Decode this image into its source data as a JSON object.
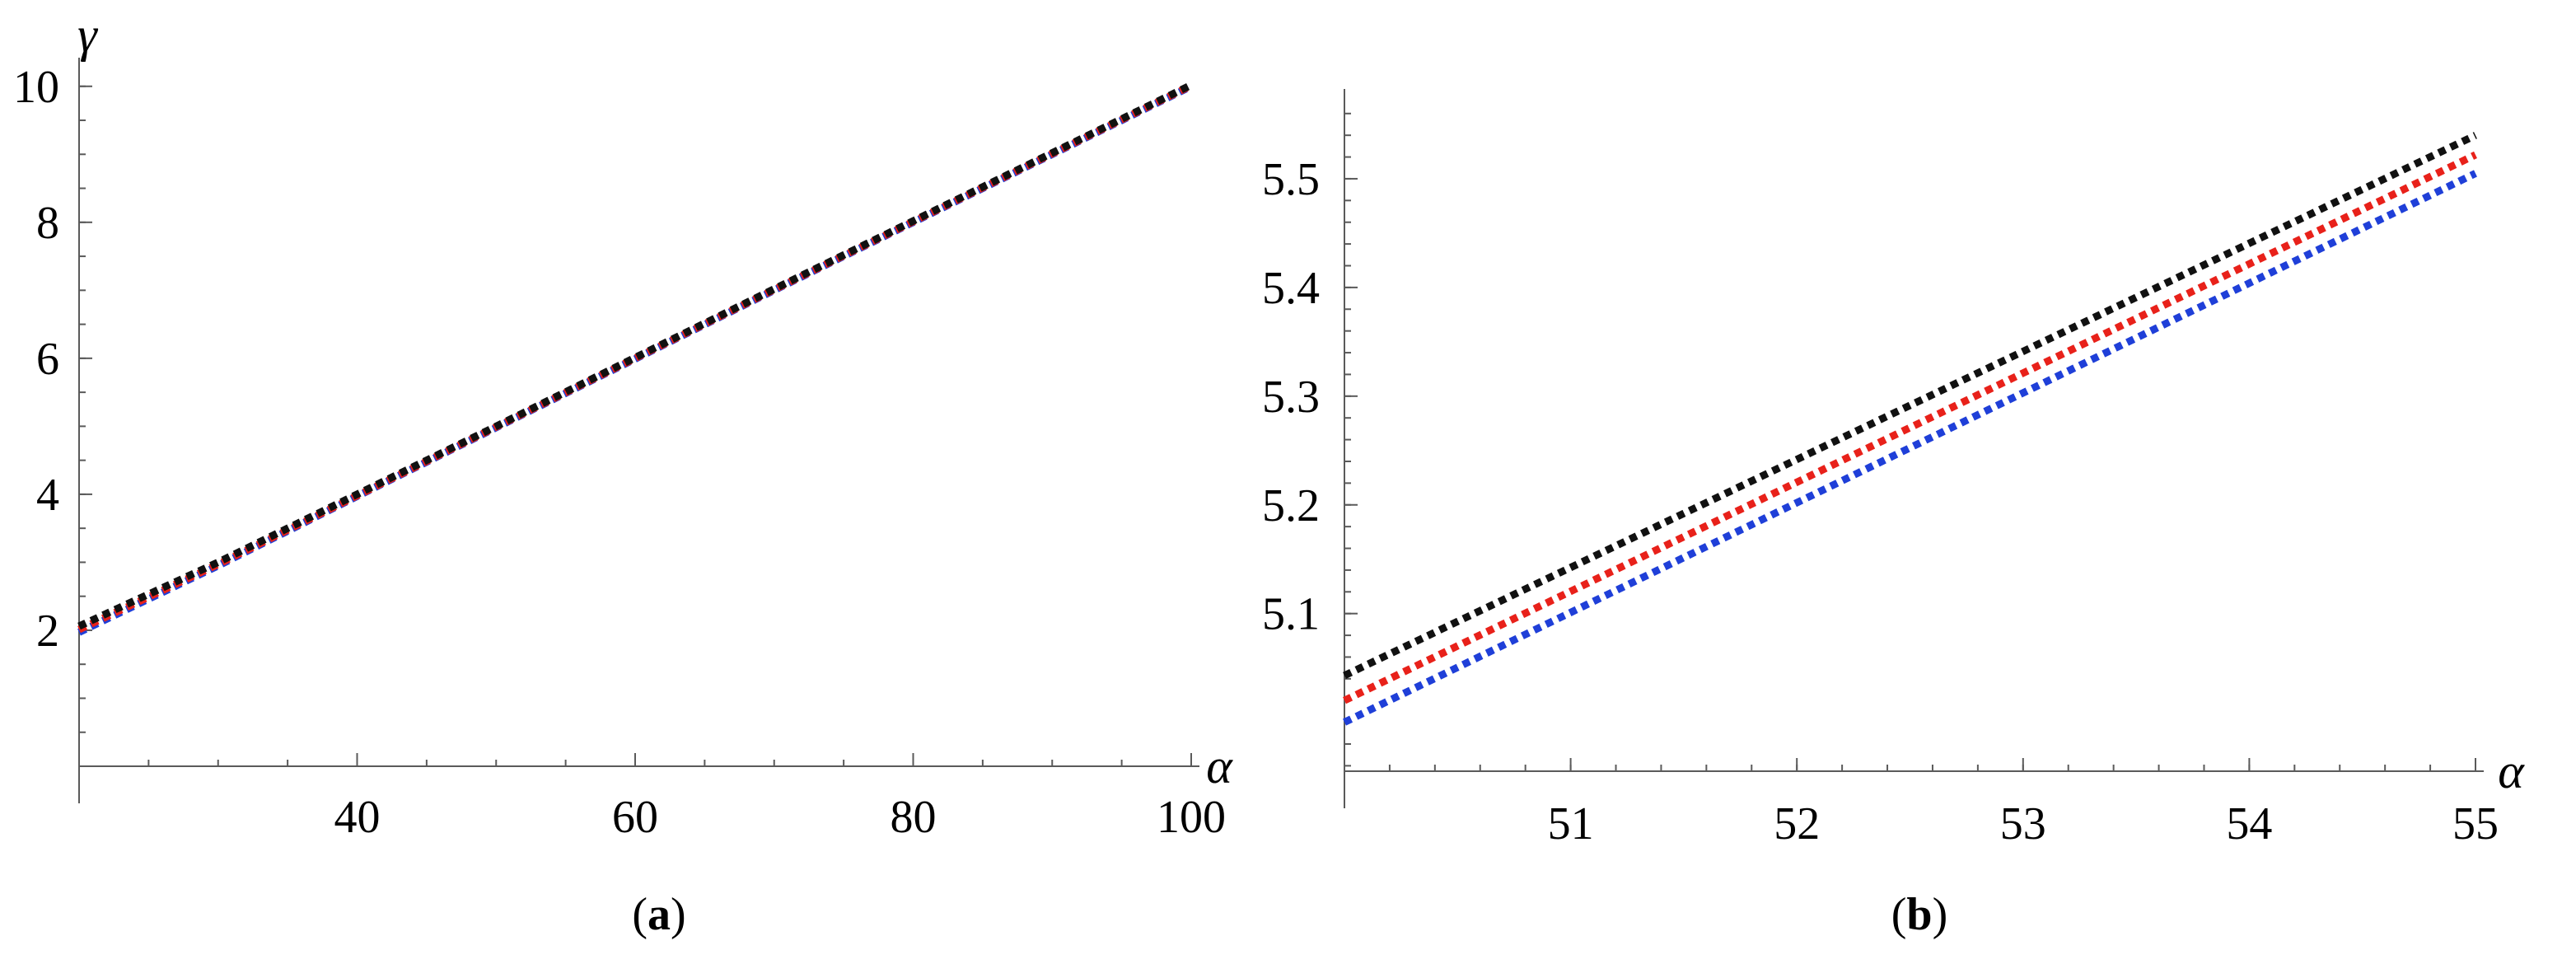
{
  "chart_data": [
    {
      "type": "line",
      "panel_label": "a",
      "xlabel": "α",
      "ylabel": "γ",
      "xlim": [
        20,
        100
      ],
      "ylim": [
        0,
        10.3
      ],
      "x_ticks": [
        40,
        60,
        80,
        100
      ],
      "y_ticks": [
        2,
        4,
        6,
        8,
        10
      ],
      "x_minor_step": 5,
      "y_minor_step": 0.5,
      "series": [
        {
          "color": "#1f3fd8",
          "x": [
            20,
            30,
            40,
            50,
            60,
            70,
            80,
            90,
            100
          ],
          "y": [
            1.97,
            2.95,
            3.97,
            4.98,
            5.99,
            7.0,
            8.0,
            9.0,
            10.0
          ]
        },
        {
          "color": "#e8211a",
          "x": [
            20,
            30,
            40,
            50,
            60,
            70,
            80,
            90,
            100
          ],
          "y": [
            2.01,
            2.97,
            3.98,
            4.99,
            6.0,
            7.01,
            8.01,
            9.01,
            10.01
          ]
        },
        {
          "color": "#111111",
          "x": [
            20,
            30,
            40,
            50,
            60,
            70,
            80,
            90,
            100
          ],
          "y": [
            2.06,
            3.0,
            4.0,
            5.0,
            6.01,
            7.02,
            8.02,
            9.02,
            10.02
          ]
        }
      ]
    },
    {
      "type": "line",
      "panel_label": "b",
      "xlabel": "α",
      "ylabel": "",
      "xlim": [
        50,
        55
      ],
      "ylim": [
        4.955,
        5.575
      ],
      "x_ticks": [
        51,
        52,
        53,
        54,
        55
      ],
      "y_ticks": [
        5.1,
        5.2,
        5.3,
        5.4,
        5.5
      ],
      "x_minor_step": 0.2,
      "y_minor_step": 0.02,
      "series": [
        {
          "color": "#1f3fd8",
          "x": [
            50,
            55
          ],
          "y": [
            5.0,
            5.505
          ]
        },
        {
          "color": "#e8211a",
          "x": [
            50,
            55
          ],
          "y": [
            5.02,
            5.522
          ]
        },
        {
          "color": "#111111",
          "x": [
            50,
            55
          ],
          "y": [
            5.043,
            5.54
          ]
        }
      ]
    }
  ],
  "captions": [
    "a",
    "b"
  ]
}
